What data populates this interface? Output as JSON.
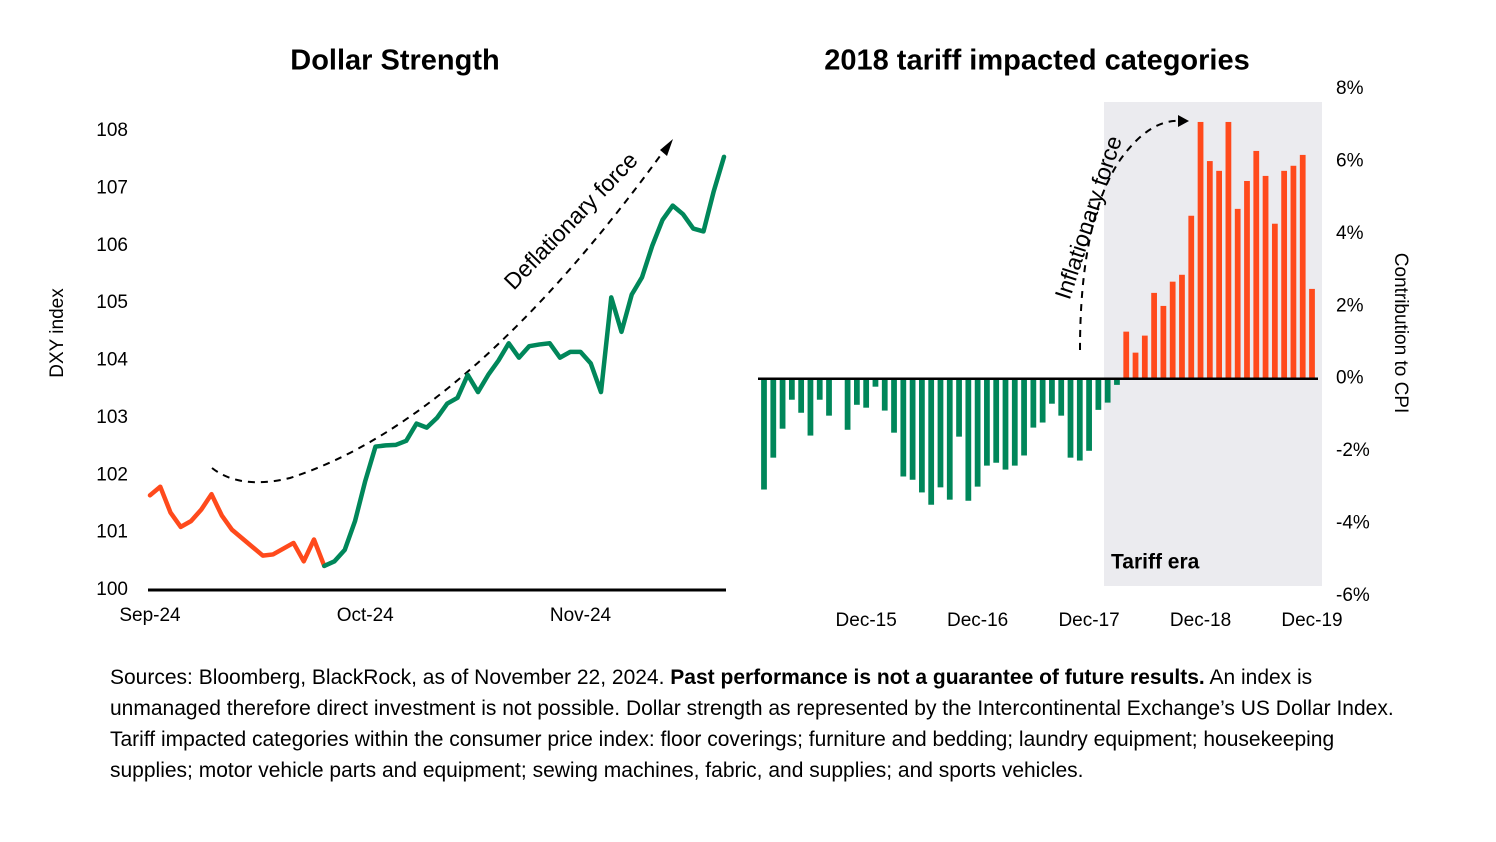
{
  "chart_data": [
    {
      "type": "line",
      "title": "Dollar Strength",
      "y_label": "DXY index",
      "annotation": "Deflationary force",
      "categories": [
        "Sep-24",
        null,
        null,
        null,
        null,
        null,
        null,
        null,
        null,
        null,
        null,
        null,
        null,
        null,
        null,
        null,
        null,
        null,
        null,
        null,
        null,
        "Oct-24",
        null,
        null,
        null,
        null,
        null,
        null,
        null,
        null,
        null,
        null,
        null,
        null,
        null,
        null,
        null,
        null,
        null,
        null,
        null,
        null,
        "Nov-24",
        null,
        null,
        null,
        null,
        null,
        null,
        null,
        null,
        null,
        null,
        null,
        null,
        null,
        null
      ],
      "series": [
        {
          "color": "#ff4a1c",
          "values": [
            101.65,
            101.8,
            101.35,
            101.1,
            101.2,
            101.4,
            101.67,
            101.3,
            101.05,
            100.9,
            100.75,
            100.6,
            100.62,
            100.72,
            100.82,
            100.5,
            100.88,
            100.42,
            null,
            null,
            null,
            null,
            null,
            null,
            null,
            null,
            null,
            null,
            null,
            null,
            null,
            null,
            null,
            null,
            null,
            null,
            null,
            null,
            null,
            null,
            null,
            null,
            null,
            null,
            null,
            null,
            null,
            null,
            null,
            null,
            null,
            null,
            null,
            null,
            null,
            null,
            null
          ]
        },
        {
          "color": "#00875a",
          "values": [
            null,
            null,
            null,
            null,
            null,
            null,
            null,
            null,
            null,
            null,
            null,
            null,
            null,
            null,
            null,
            null,
            null,
            100.42,
            100.5,
            100.7,
            101.2,
            101.9,
            102.5,
            102.52,
            102.53,
            102.6,
            102.9,
            102.83,
            103,
            103.25,
            103.35,
            103.75,
            103.45,
            103.75,
            104,
            104.3,
            104.05,
            104.25,
            104.28,
            104.3,
            104.05,
            104.15,
            104.15,
            103.95,
            103.45,
            105.1,
            104.5,
            105.15,
            105.45,
            106,
            106.45,
            106.7,
            106.55,
            106.3,
            106.25,
            106.95,
            107.55
          ]
        }
      ],
      "ylim": [
        100,
        108
      ],
      "yticks": [
        100,
        101,
        102,
        103,
        104,
        105,
        106,
        107,
        108
      ]
    },
    {
      "type": "bar",
      "title": "2018 tariff impacted categories",
      "y_label": "Contribution to CPI",
      "annotation": "Inflationary force",
      "region_label": "Tariff era",
      "categories": [
        null,
        null,
        null,
        null,
        null,
        null,
        null,
        null,
        null,
        null,
        null,
        "Dec-15",
        null,
        null,
        null,
        null,
        null,
        null,
        null,
        null,
        null,
        null,
        null,
        "Dec-16",
        null,
        null,
        null,
        null,
        null,
        null,
        null,
        null,
        null,
        null,
        null,
        "Dec-17",
        null,
        null,
        null,
        null,
        null,
        null,
        null,
        null,
        null,
        null,
        null,
        "Dec-18",
        null,
        null,
        null,
        null,
        null,
        null,
        null,
        null,
        null,
        null,
        null,
        "Dec-19"
      ],
      "values": [
        -3.06,
        -2.18,
        -1.38,
        -0.58,
        -0.94,
        -1.57,
        -0.58,
        -1.02,
        0,
        -1.41,
        -0.72,
        -0.8,
        -0.22,
        -0.88,
        -1.49,
        -2.7,
        -2.79,
        -3.14,
        -3.48,
        -3,
        -3.34,
        -1.6,
        -3.37,
        -2.98,
        -2.4,
        -2.32,
        -2.51,
        -2.4,
        -2.12,
        -1.35,
        -1.21,
        -0.69,
        -1.02,
        -2.18,
        -2.26,
        -1.99,
        -0.86,
        -0.66,
        -0.17,
        1.3,
        0.72,
        1.19,
        2.37,
        2.01,
        2.68,
        2.87,
        4.5,
        7.09,
        6.01,
        5.74,
        7.09,
        4.69,
        5.46,
        6.29,
        5.6,
        4.28,
        5.74,
        5.88,
        6.18,
        2.48
      ],
      "positive_color": "#ff4a1c",
      "negative_color": "#00875a",
      "ylim": [
        -6,
        8
      ],
      "yticks": [
        {
          "value": -6,
          "label": "-6%"
        },
        {
          "value": -4,
          "label": "-4%"
        },
        {
          "value": -2,
          "label": "-2%"
        },
        {
          "value": 0,
          "label": "0%"
        },
        {
          "value": 2,
          "label": "2%"
        },
        {
          "value": 4,
          "label": "4%"
        },
        {
          "value": 6,
          "label": "6%"
        },
        {
          "value": 8,
          "label": "8%"
        }
      ]
    }
  ],
  "footnote": {
    "source": "Sources: Bloomberg, BlackRock, as of November 22, 2024.",
    "bold": "Past performance is not a guarantee of future results.",
    "rest": "An index is unmanaged therefore direct investment is not possible. Dollar strength as represented by the Intercontinental Exchange’s US Dollar Index. Tariff impacted categories within the consumer price index: floor coverings; furniture and bedding; laundry equipment; housekeeping supplies; motor vehicle parts and equipment; sewing machines, fabric, and supplies; and sports vehicles."
  }
}
